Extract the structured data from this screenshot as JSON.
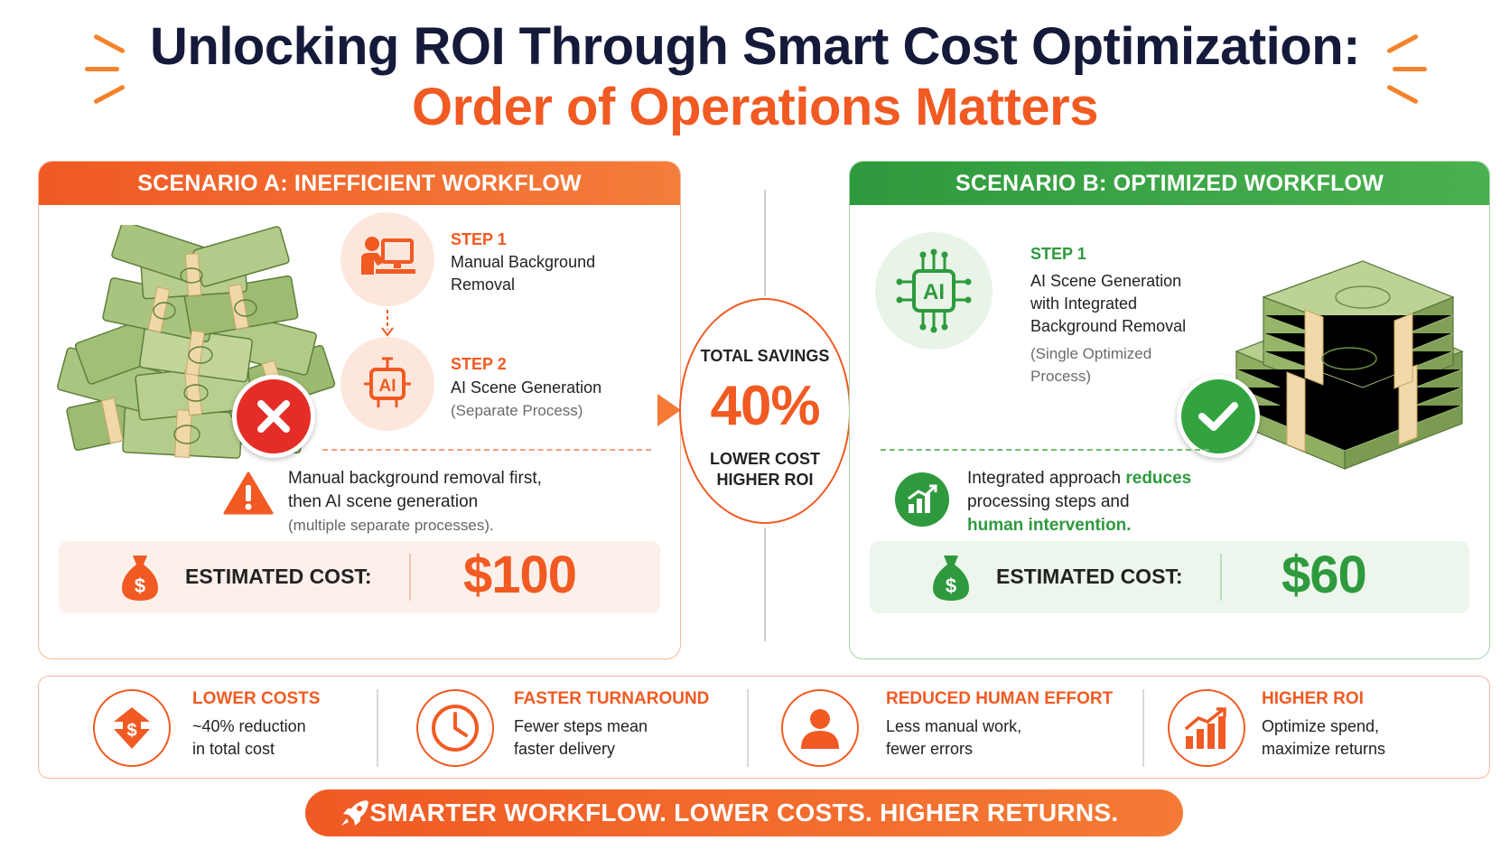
{
  "title": {
    "line1": "Unlocking ROI Through Smart Cost Optimization:",
    "line2": "Order of Operations Matters"
  },
  "scenario_a": {
    "header": "SCENARIO A: INEFFICIENT WORKFLOW",
    "step1": {
      "label": "STEP 1",
      "text_line1": "Manual Background",
      "text_line2": "Removal"
    },
    "step2": {
      "label": "STEP 2",
      "text": "AI Scene Generation",
      "sub": "(Separate Process)"
    },
    "step2_icon_text": "AI",
    "note": {
      "line1": "Manual background removal first,",
      "line2": "then AI scene generation",
      "sub": "(multiple separate processes)."
    },
    "cost_label": "ESTIMATED COST:",
    "cost_value": "$100",
    "accent": "#f15a22",
    "status_icon": "x-icon"
  },
  "savings": {
    "label": "TOTAL SAVINGS",
    "value": "40%",
    "line1": "LOWER COST",
    "line2": "HIGHER ROI"
  },
  "scenario_b": {
    "header": "SCENARIO B: OPTIMIZED WORKFLOW",
    "step1": {
      "label": "STEP 1",
      "line1": "AI Scene Generation",
      "line2": "with Integrated",
      "line3": "Background Removal",
      "sub1": "(Single Optimized",
      "sub2": "Process)"
    },
    "chip_text": "AI",
    "note": {
      "part1": "Integrated approach ",
      "highlight1": "reduces",
      "line2": "processing steps and",
      "highlight2": "human intervention."
    },
    "cost_label": "ESTIMATED COST:",
    "cost_value": "$60",
    "accent": "#2e9a3d",
    "status_icon": "check-icon"
  },
  "benefits": [
    {
      "title": "LOWER COSTS",
      "line1": "~40% reduction",
      "line2": "in total cost",
      "icon": "money-arrow-down-icon"
    },
    {
      "title": "FASTER TURNAROUND",
      "line1": "Fewer steps mean",
      "line2": "faster delivery",
      "icon": "clock-icon"
    },
    {
      "title": "REDUCED HUMAN EFFORT",
      "line1": "Less manual work,",
      "line2": "fewer errors",
      "icon": "person-icon"
    },
    {
      "title": "HIGHER ROI",
      "line1": "Optimize spend,",
      "line2": "maximize returns",
      "icon": "growth-chart-icon"
    }
  ],
  "banner": "SMARTER WORKFLOW. LOWER COSTS. HIGHER RETURNS."
}
